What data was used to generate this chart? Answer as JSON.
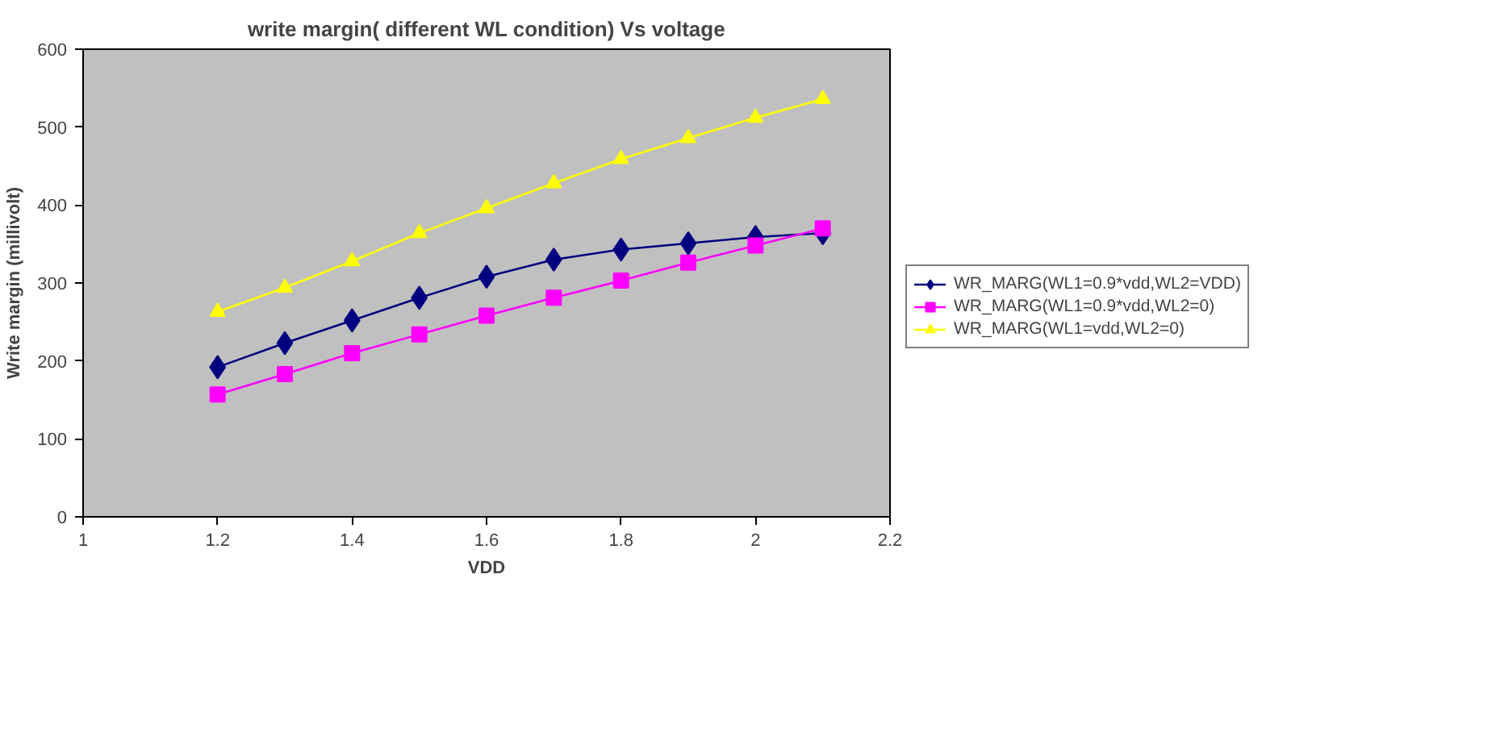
{
  "chart_data": {
    "type": "line",
    "title": "write margin( different WL condition) Vs voltage",
    "xlabel": "VDD",
    "ylabel": "Write margin (millivolt)",
    "x": [
      1.2,
      1.3,
      1.4,
      1.5,
      1.6,
      1.7,
      1.8,
      1.9,
      2.0,
      2.1
    ],
    "series": [
      {
        "name": "WR_MARG(WL1=0.9*vdd,WL2=VDD)",
        "color": "#000080",
        "marker": "diamond",
        "values": [
          192,
          223,
          252,
          281,
          308,
          330,
          343,
          351,
          359,
          364
        ]
      },
      {
        "name": "WR_MARG(WL1=0.9*vdd,WL2=0)",
        "color": "#ff00ff",
        "marker": "square",
        "values": [
          157,
          183,
          210,
          234,
          258,
          281,
          303,
          326,
          348,
          370
        ]
      },
      {
        "name": "WR_MARG(WL1=vdd,WL2=0)",
        "color": "#ffff00",
        "marker": "triangle",
        "values": [
          263,
          294,
          328,
          364,
          396,
          428,
          459,
          486,
          512,
          536
        ]
      }
    ],
    "xlim": [
      1,
      2.2
    ],
    "xticks": [
      1,
      1.2,
      1.4,
      1.6,
      1.8,
      2,
      2.2
    ],
    "ylim": [
      0,
      600
    ],
    "yticks": [
      0,
      100,
      200,
      300,
      400,
      500,
      600
    ],
    "grid": false,
    "legend": "right"
  }
}
